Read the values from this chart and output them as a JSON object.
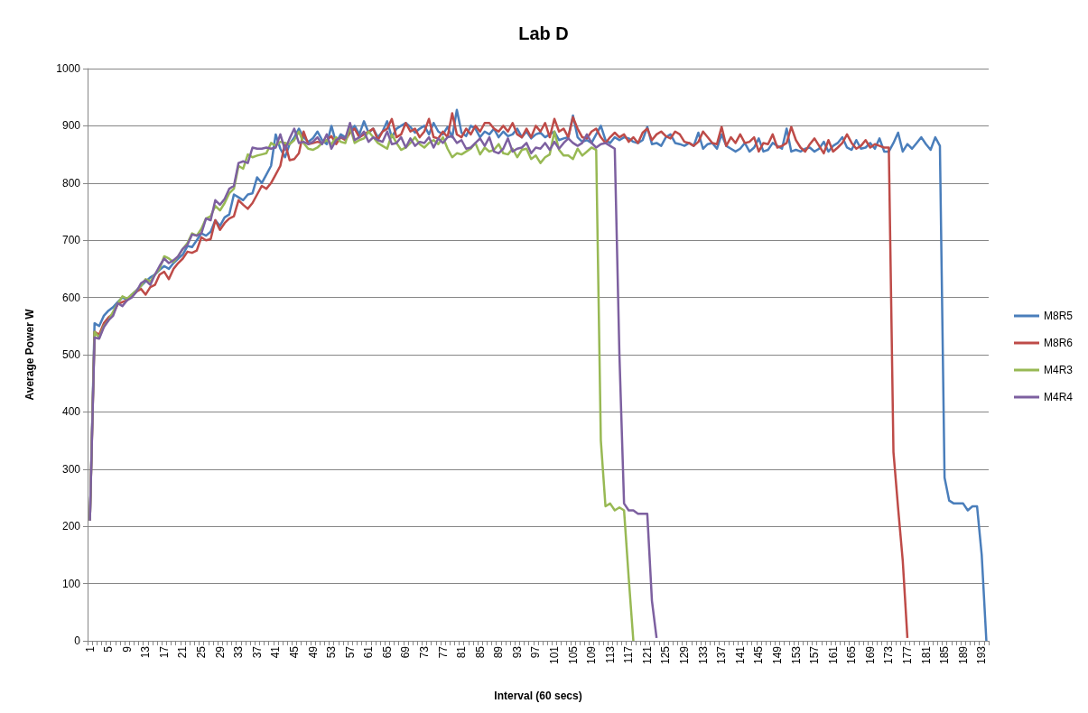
{
  "chart_data": {
    "type": "line",
    "title": "Lab D",
    "xlabel": "Interval (60 secs)",
    "ylabel": "Average Power W",
    "categories": [
      "1",
      null,
      null,
      null,
      "5",
      null,
      null,
      null,
      "9",
      null,
      null,
      null,
      "13",
      null,
      null,
      null,
      "17",
      null,
      null,
      null,
      "21",
      null,
      null,
      null,
      "25",
      null,
      null,
      null,
      "29",
      null,
      null,
      null,
      "33",
      null,
      null,
      null,
      "37",
      null,
      null,
      null,
      "41",
      null,
      null,
      null,
      "45",
      null,
      null,
      null,
      "49",
      null,
      null,
      null,
      "53",
      null,
      null,
      null,
      "57",
      null,
      null,
      null,
      "61",
      null,
      null,
      null,
      "65",
      null,
      null,
      null,
      "69",
      null,
      null,
      null,
      "73",
      null,
      null,
      null,
      "77",
      null,
      null,
      null,
      "81",
      null,
      null,
      null,
      "85",
      null,
      null,
      null,
      "89",
      null,
      null,
      null,
      "93",
      null,
      null,
      null,
      "97",
      null,
      null,
      null,
      "101",
      null,
      null,
      null,
      "105",
      null,
      null,
      null,
      "109",
      null,
      null,
      null,
      "113",
      null,
      null,
      null,
      "117",
      null,
      null,
      null,
      "121",
      null,
      null,
      null,
      "125",
      null,
      null,
      null,
      "129",
      null,
      null,
      null,
      "133",
      null,
      null,
      null,
      "137",
      null,
      null,
      null,
      "141",
      null,
      null,
      null,
      "145",
      null,
      null,
      null,
      "149",
      null,
      null,
      null,
      "153",
      null,
      null,
      null,
      "157",
      null,
      null,
      null,
      "161",
      null,
      null,
      null,
      "165",
      null,
      null,
      null,
      "169",
      null,
      null,
      null,
      "173",
      null,
      null,
      null,
      "177",
      null,
      null,
      null,
      "181",
      null,
      null,
      null,
      "185",
      null,
      null,
      null,
      "189",
      null,
      null,
      null,
      "193",
      null
    ],
    "series": [
      {
        "name": "M8R5",
        "color": "#4a7ebb",
        "values": [
          210,
          555,
          550,
          568,
          577,
          583,
          592,
          600,
          596,
          605,
          612,
          620,
          628,
          635,
          640,
          648,
          655,
          650,
          660,
          668,
          675,
          690,
          688,
          700,
          712,
          708,
          715,
          735,
          725,
          740,
          745,
          780,
          775,
          770,
          780,
          782,
          810,
          800,
          815,
          830,
          885,
          860,
          845,
          868,
          880,
          895,
          880,
          872,
          878,
          890,
          875,
          868,
          900,
          870,
          885,
          880,
          890,
          900,
          885,
          908,
          888,
          895,
          880,
          890,
          908,
          880,
          895,
          900,
          905,
          898,
          888,
          895,
          900,
          885,
          905,
          890,
          885,
          898,
          880,
          928,
          888,
          882,
          900,
          895,
          880,
          890,
          885,
          895,
          880,
          890,
          882,
          885,
          895,
          880,
          890,
          878,
          885,
          888,
          880,
          885,
          890,
          875,
          878,
          880,
          918,
          880,
          872,
          875,
          870,
          885,
          900,
          875,
          870,
          880,
          875,
          880,
          878,
          872,
          870,
          875,
          898,
          868,
          870,
          865,
          880,
          885,
          870,
          868,
          865,
          870,
          865,
          888,
          860,
          868,
          870,
          860,
          885,
          865,
          860,
          855,
          860,
          870,
          855,
          862,
          878,
          855,
          858,
          870,
          865,
          860,
          895,
          855,
          858,
          855,
          860,
          862,
          855,
          860,
          872,
          855,
          865,
          870,
          880,
          862,
          858,
          875,
          860,
          862,
          870,
          860,
          878,
          855,
          855,
          870,
          888,
          855,
          868,
          860,
          870,
          880,
          868,
          858,
          880,
          865,
          285,
          245,
          240,
          240,
          240,
          228,
          235,
          235,
          150,
          0
        ]
      },
      {
        "name": "M8R6",
        "color": "#be4b48",
        "values": [
          210,
          540,
          535,
          555,
          565,
          572,
          588,
          592,
          595,
          602,
          610,
          615,
          605,
          618,
          622,
          640,
          645,
          632,
          650,
          660,
          668,
          680,
          678,
          682,
          705,
          700,
          702,
          735,
          718,
          730,
          738,
          742,
          770,
          762,
          755,
          765,
          780,
          795,
          790,
          800,
          815,
          830,
          870,
          840,
          842,
          852,
          890,
          868,
          870,
          872,
          870,
          875,
          882,
          868,
          880,
          875,
          888,
          895,
          880,
          885,
          890,
          895,
          875,
          890,
          895,
          912,
          880,
          885,
          905,
          890,
          895,
          880,
          890,
          912,
          880,
          878,
          890,
          880,
          922,
          885,
          880,
          895,
          885,
          900,
          890,
          905,
          905,
          895,
          890,
          900,
          890,
          905,
          885,
          880,
          895,
          880,
          900,
          890,
          905,
          880,
          912,
          890,
          895,
          880,
          915,
          895,
          880,
          878,
          890,
          895,
          880,
          870,
          880,
          888,
          880,
          885,
          872,
          880,
          870,
          888,
          895,
          875,
          885,
          890,
          882,
          878,
          890,
          885,
          872,
          870,
          865,
          872,
          890,
          880,
          870,
          868,
          898,
          865,
          880,
          870,
          885,
          870,
          872,
          880,
          855,
          870,
          868,
          885,
          862,
          865,
          870,
          898,
          875,
          862,
          855,
          868,
          878,
          865,
          852,
          875,
          855,
          862,
          870,
          885,
          870,
          860,
          865,
          875,
          862,
          868,
          865,
          862,
          862,
          330,
          232,
          140,
          5,
          null,
          null,
          null,
          null,
          null,
          null,
          null,
          null,
          null,
          null,
          null,
          null,
          null,
          null,
          null,
          null,
          null
        ]
      },
      {
        "name": "M4R3",
        "color": "#98b954",
        "values": [
          210,
          540,
          530,
          550,
          560,
          575,
          590,
          602,
          598,
          605,
          612,
          620,
          632,
          628,
          640,
          650,
          672,
          668,
          662,
          672,
          685,
          695,
          712,
          708,
          720,
          738,
          742,
          760,
          752,
          765,
          782,
          790,
          830,
          825,
          850,
          845,
          848,
          850,
          852,
          870,
          865,
          872,
          870,
          868,
          875,
          890,
          870,
          860,
          858,
          862,
          870,
          875,
          868,
          880,
          872,
          870,
          898,
          870,
          875,
          878,
          890,
          880,
          870,
          865,
          860,
          885,
          870,
          858,
          862,
          870,
          880,
          868,
          862,
          870,
          875,
          868,
          880,
          860,
          845,
          852,
          850,
          855,
          860,
          870,
          850,
          862,
          855,
          858,
          868,
          852,
          850,
          860,
          845,
          858,
          860,
          842,
          848,
          835,
          845,
          850,
          890,
          858,
          848,
          848,
          842,
          860,
          848,
          855,
          862,
          858,
          350,
          235,
          240,
          228,
          233,
          228,
          110,
          0,
          null,
          null,
          null,
          null,
          null,
          null,
          null,
          null,
          null,
          null,
          null,
          null,
          null,
          null,
          null,
          null,
          null,
          null,
          null,
          null,
          null,
          null,
          null,
          null,
          null,
          null,
          null,
          null,
          null,
          null,
          null,
          null,
          null,
          null,
          null,
          null,
          null,
          null,
          null,
          null,
          null,
          null,
          null,
          null,
          null,
          null,
          null,
          null,
          null,
          null,
          null,
          null,
          null,
          null,
          null,
          null,
          null,
          null,
          null,
          null,
          null,
          null,
          null,
          null,
          null,
          null,
          null,
          null,
          null,
          null,
          null,
          null,
          null,
          null,
          null,
          null
        ]
      },
      {
        "name": "M4R4",
        "color": "#7d60a0",
        "values": [
          210,
          530,
          528,
          548,
          560,
          568,
          590,
          585,
          595,
          600,
          610,
          625,
          630,
          622,
          640,
          655,
          668,
          660,
          665,
          672,
          685,
          692,
          710,
          708,
          712,
          738,
          735,
          770,
          762,
          772,
          790,
          795,
          835,
          838,
          835,
          862,
          860,
          860,
          862,
          860,
          862,
          885,
          858,
          878,
          895,
          870,
          872,
          868,
          872,
          880,
          868,
          885,
          860,
          875,
          880,
          878,
          905,
          875,
          880,
          890,
          872,
          880,
          875,
          872,
          890,
          868,
          870,
          880,
          862,
          878,
          865,
          872,
          870,
          880,
          862,
          878,
          870,
          880,
          882,
          870,
          875,
          860,
          862,
          870,
          878,
          865,
          880,
          855,
          852,
          860,
          878,
          855,
          860,
          862,
          870,
          852,
          862,
          860,
          870,
          858,
          872,
          860,
          870,
          878,
          870,
          865,
          870,
          885,
          870,
          862,
          868,
          870,
          865,
          860,
          500,
          240,
          228,
          228,
          222,
          222,
          222,
          70,
          5,
          null,
          null,
          null,
          null,
          null,
          null,
          null,
          null,
          null,
          null,
          null,
          null,
          null,
          null,
          null,
          null,
          null,
          null,
          null,
          null,
          null,
          null,
          null,
          null,
          null,
          null,
          null,
          null,
          null,
          null,
          null,
          null,
          null,
          null,
          null,
          null,
          null,
          null,
          null,
          null,
          null,
          null,
          null,
          null,
          null,
          null,
          null,
          null,
          null,
          null,
          null,
          null,
          null,
          null,
          null,
          null,
          null,
          null,
          null,
          null,
          null,
          null,
          null,
          null,
          null,
          null,
          null,
          null,
          null,
          null,
          null
        ]
      }
    ],
    "ylim": [
      0,
      1000
    ],
    "yticks": [
      0,
      100,
      200,
      300,
      400,
      500,
      600,
      700,
      800,
      900,
      1000
    ],
    "grid": "y",
    "legend": "right",
    "marker": "none"
  }
}
